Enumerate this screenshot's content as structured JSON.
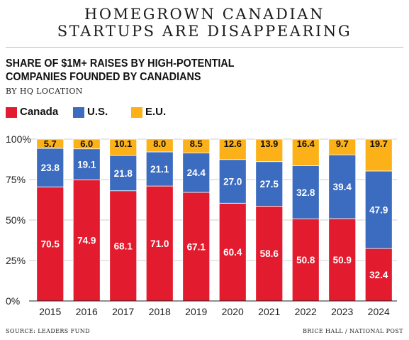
{
  "headline": [
    "HOMEGROWN CANADIAN",
    "STARTUPS ARE DISAPPEARING"
  ],
  "colors": {
    "Canada": "#e31b2e",
    "U.S.": "#3b6cc0",
    "E.U.": "#fbb117"
  },
  "footer": {
    "source": "SOURCE: LEADERS FUND",
    "credit": "BRICE HALL / NATIONAL POST"
  },
  "chart_data": {
    "type": "bar",
    "stacked": true,
    "title": [
      "SHARE OF $1M+ RAISES BY HIGH-POTENTIAL",
      "COMPANIES FOUNDED BY CANADIANS"
    ],
    "subtitle": "BY HQ LOCATION",
    "xlabel": "",
    "ylabel": "",
    "ylim": [
      0,
      100
    ],
    "yticks": [
      "0%",
      "25%",
      "50%",
      "75%",
      "100%"
    ],
    "grid": true,
    "legend_position": "top-left",
    "categories": [
      "2015",
      "2016",
      "2017",
      "2018",
      "2019",
      "2020",
      "2021",
      "2022",
      "2023",
      "2024"
    ],
    "series": [
      {
        "name": "Canada",
        "values": [
          "70.5",
          "74.9",
          "68.1",
          "71.0",
          "67.1",
          "60.4",
          "58.6",
          "50.8",
          "50.9",
          "32.4"
        ]
      },
      {
        "name": "U.S.",
        "values": [
          "23.8",
          "19.1",
          "21.8",
          "21.1",
          "24.4",
          "27.0",
          "27.5",
          "32.8",
          "39.4",
          "47.9"
        ]
      },
      {
        "name": "E.U.",
        "values": [
          "5.7",
          "6.0",
          "10.1",
          "8.0",
          "8.5",
          "12.6",
          "13.9",
          "16.4",
          "9.7",
          "19.7"
        ]
      }
    ]
  }
}
